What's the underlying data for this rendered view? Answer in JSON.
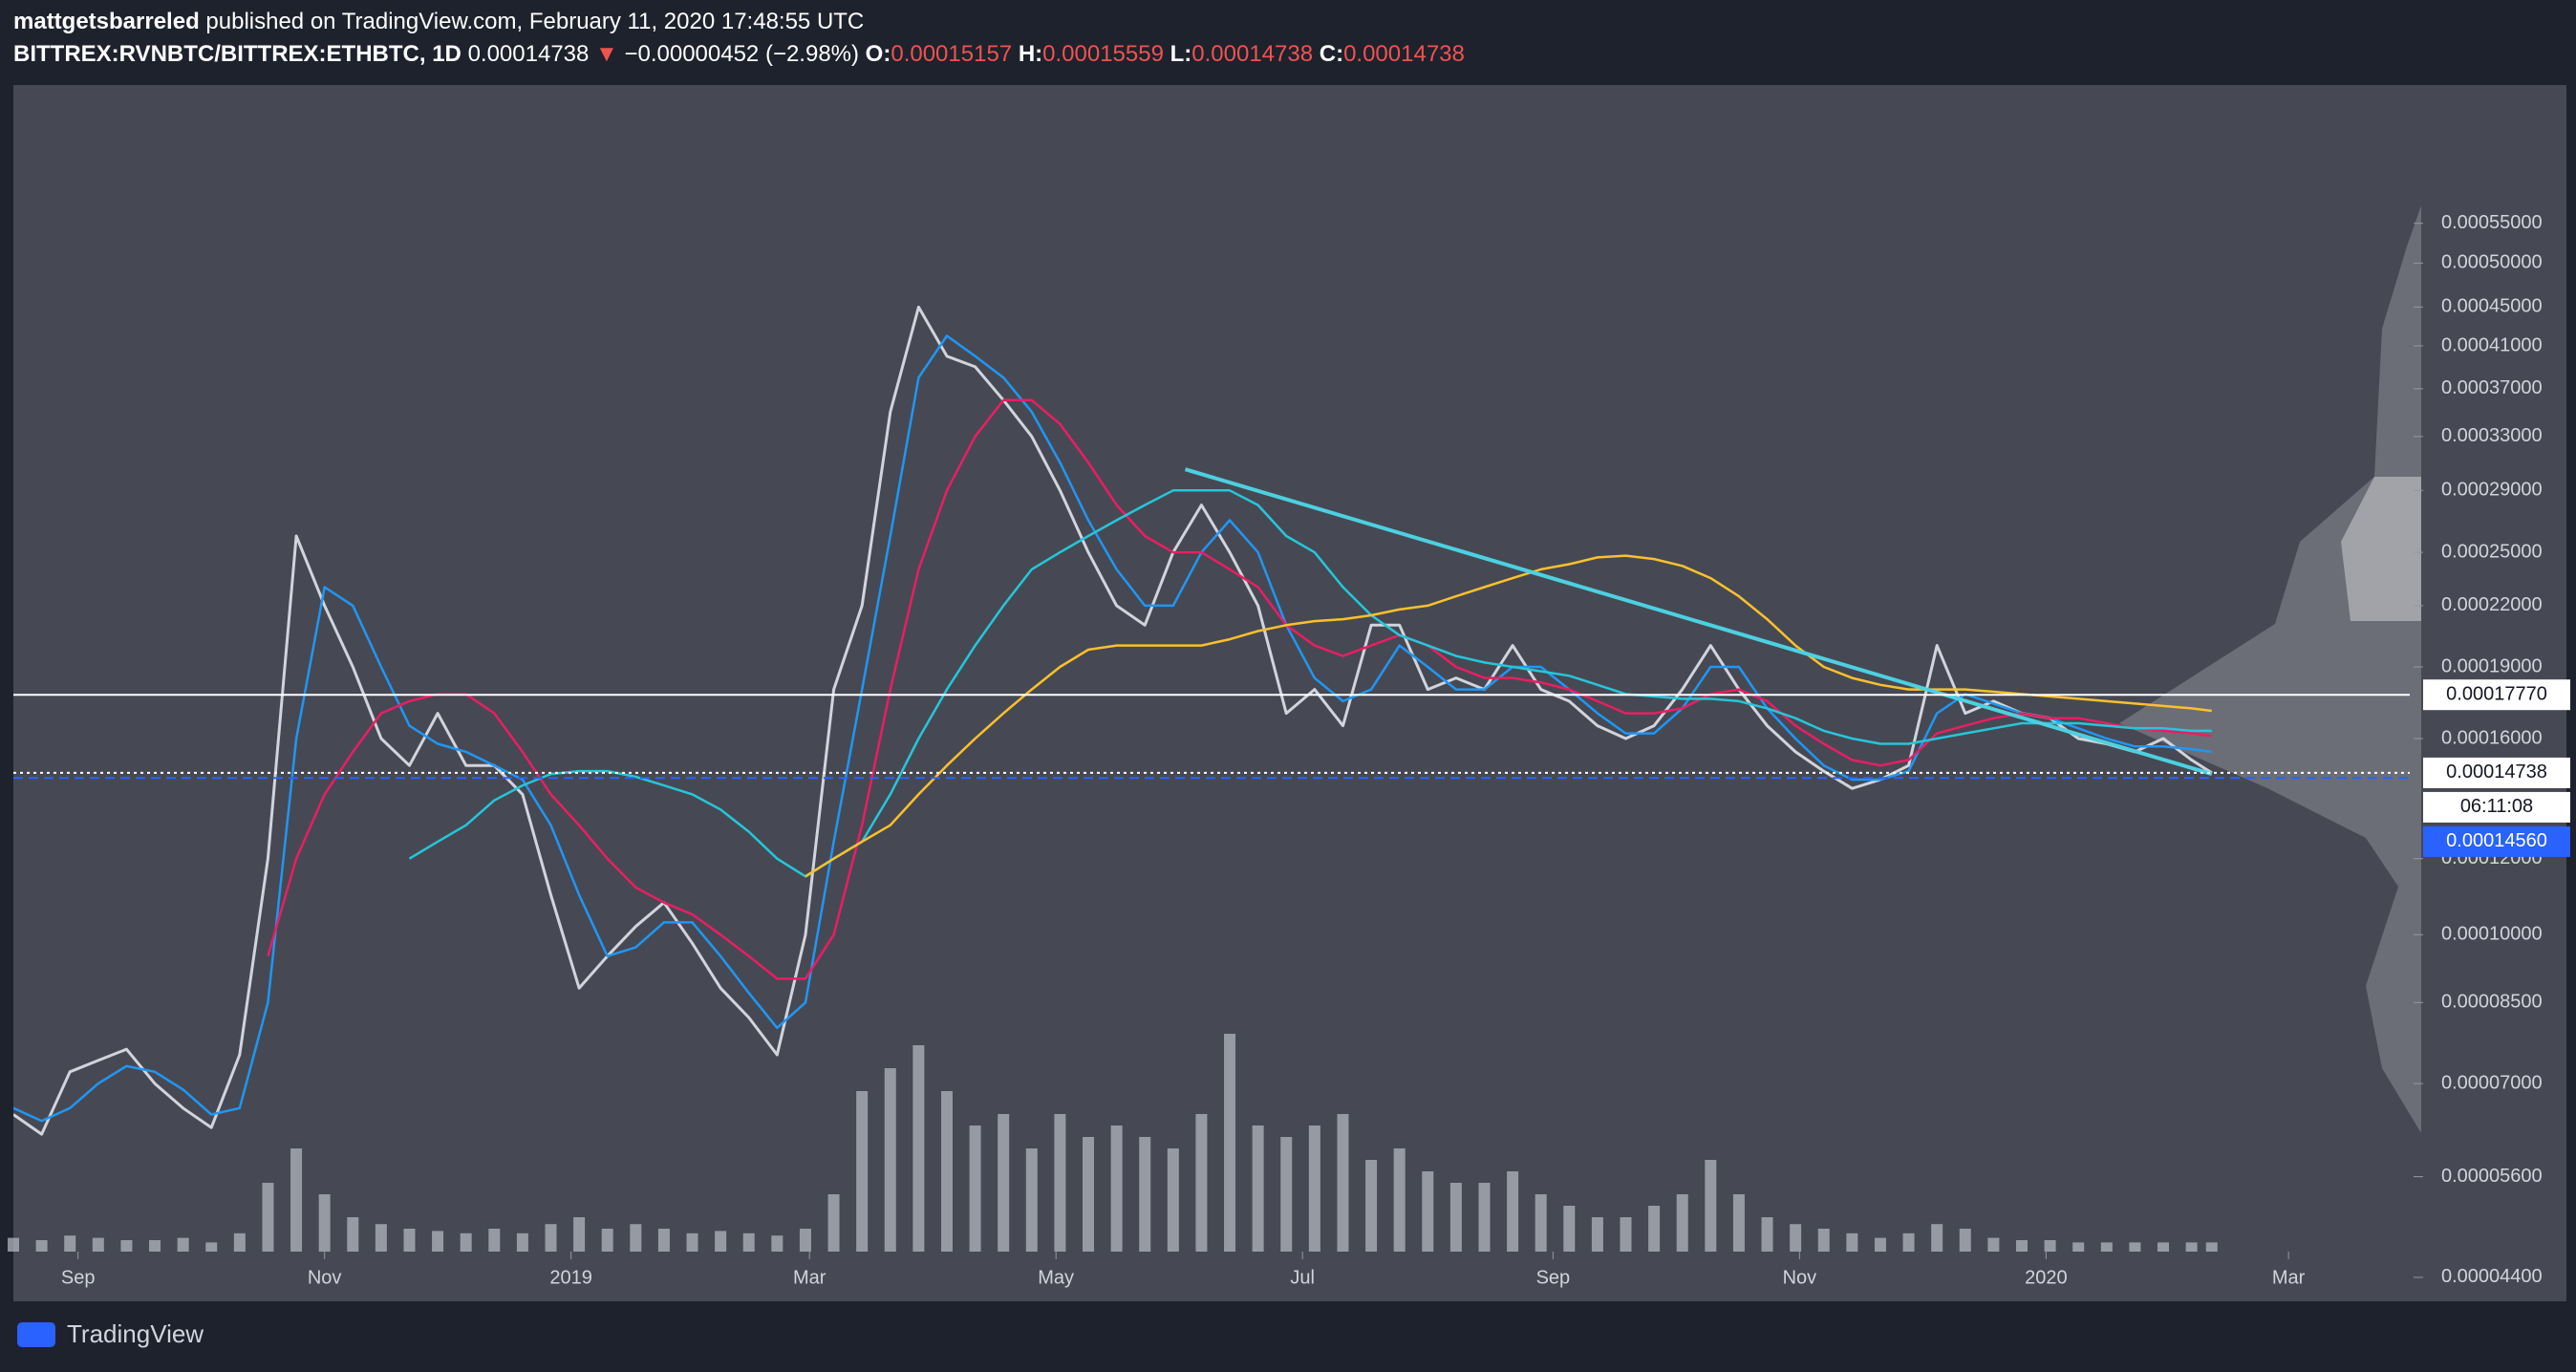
{
  "header": {
    "author": "mattgetsbarreled",
    "published": " published on TradingView.com, February 11, 2020 17:48:55 UTC",
    "symbol": "BITTREX:RVNBTC/BITTREX:ETHBTC, 1D",
    "last": "0.00014738",
    "change": "−0.00000452 (−2.98%)",
    "open_label": "O:",
    "open": "0.00015157",
    "high_label": "H:",
    "high": "0.00015559",
    "low_label": "L:",
    "low": "0.00014738",
    "close_label": "C:",
    "close": "0.00014738"
  },
  "footer": {
    "brand": "TradingView"
  },
  "chart_data": {
    "type": "line",
    "x": [
      0,
      7,
      14,
      21,
      28,
      35,
      42,
      49,
      56,
      63,
      70,
      77,
      84,
      91,
      98,
      105,
      112,
      119,
      126,
      133,
      140,
      147,
      154,
      161,
      168,
      175,
      182,
      189,
      196,
      203,
      210,
      217,
      224,
      231,
      238,
      245,
      252,
      259,
      266,
      273,
      280,
      287,
      294,
      301,
      308,
      315,
      322,
      329,
      336,
      343,
      350,
      357,
      364,
      371,
      378,
      385,
      392,
      399,
      406,
      413,
      420,
      427,
      434,
      441,
      448,
      455,
      462,
      469,
      476,
      483,
      490,
      497,
      504,
      511,
      518,
      525,
      532,
      539,
      544
    ],
    "xlim": [
      0,
      593
    ],
    "xticks": [
      {
        "value": 16,
        "label": "Sep"
      },
      {
        "value": 77,
        "label": "Nov"
      },
      {
        "value": 138,
        "label": "2019"
      },
      {
        "value": 197,
        "label": "Mar"
      },
      {
        "value": 258,
        "label": "May"
      },
      {
        "value": 319,
        "label": "Jul"
      },
      {
        "value": 381,
        "label": "Sep"
      },
      {
        "value": 442,
        "label": "Nov"
      },
      {
        "value": 503,
        "label": "2020"
      },
      {
        "value": 563,
        "label": "Mar"
      }
    ],
    "ylim": [
      4.68e-05,
      0.000766
    ],
    "log": true,
    "grid": false,
    "yticks": [
      {
        "value": 0.00055,
        "label": "0.00055000"
      },
      {
        "value": 0.0005,
        "label": "0.00050000"
      },
      {
        "value": 0.00045,
        "label": "0.00045000"
      },
      {
        "value": 0.00041,
        "label": "0.00041000"
      },
      {
        "value": 0.00037,
        "label": "0.00037000"
      },
      {
        "value": 0.00033,
        "label": "0.00033000"
      },
      {
        "value": 0.00029,
        "label": "0.00029000"
      },
      {
        "value": 0.00025,
        "label": "0.00025000"
      },
      {
        "value": 0.00022,
        "label": "0.00022000"
      },
      {
        "value": 0.00019,
        "label": "0.00019000"
      },
      {
        "value": 0.00016,
        "label": "0.00016000"
      },
      {
        "value": 0.00012,
        "label": "0.00012000"
      },
      {
        "value": 0.0001,
        "label": "0.00010000"
      },
      {
        "value": 8.5e-05,
        "label": "0.00008500"
      },
      {
        "value": 7e-05,
        "label": "0.00007000"
      },
      {
        "value": 5.6e-05,
        "label": "0.00005600"
      },
      {
        "value": 4.4e-05,
        "label": "0.00004400"
      }
    ],
    "series": [
      {
        "color": "#d1d4dc",
        "values": [
          6.5e-05,
          6.2e-05,
          7.2e-05,
          7.4e-05,
          7.6e-05,
          7e-05,
          6.6e-05,
          6.3e-05,
          7.5e-05,
          0.00012,
          0.00026,
          0.00022,
          0.00019,
          0.00016,
          0.00015,
          0.00017,
          0.00015,
          0.00015,
          0.00014,
          0.00011,
          8.8e-05,
          9.5e-05,
          0.000102,
          0.000108,
          9.8e-05,
          8.8e-05,
          8.2e-05,
          7.5e-05,
          0.0001,
          0.00018,
          0.00022,
          0.00035,
          0.00045,
          0.0004,
          0.00039,
          0.00036,
          0.00033,
          0.00029,
          0.00025,
          0.00022,
          0.00021,
          0.00025,
          0.00028,
          0.00025,
          0.00022,
          0.00017,
          0.00018,
          0.000165,
          0.00021,
          0.00021,
          0.00018,
          0.000185,
          0.00018,
          0.0002,
          0.00018,
          0.000175,
          0.000165,
          0.00016,
          0.000165,
          0.00018,
          0.0002,
          0.00018,
          0.000165,
          0.000155,
          0.000148,
          0.000142,
          0.000145,
          0.00015,
          0.0002,
          0.00017,
          0.000175,
          0.00017,
          0.000168,
          0.00016,
          0.000158,
          0.000155,
          0.00016,
          0.000152,
          0.00014738
        ]
      },
      {
        "color": "#2196f3",
        "values": [
          6.6e-05,
          6.4e-05,
          6.6e-05,
          7e-05,
          7.3e-05,
          7.2e-05,
          6.9e-05,
          6.5e-05,
          6.6e-05,
          8.5e-05,
          0.00016,
          0.00023,
          0.00022,
          0.00019,
          0.000165,
          0.000158,
          0.000155,
          0.00015,
          0.000145,
          0.00013,
          0.00011,
          9.5e-05,
          9.7e-05,
          0.000103,
          0.000103,
          9.5e-05,
          8.7e-05,
          8e-05,
          8.5e-05,
          0.000125,
          0.00018,
          0.00026,
          0.00038,
          0.00042,
          0.0004,
          0.00038,
          0.00035,
          0.00031,
          0.00027,
          0.00024,
          0.00022,
          0.00022,
          0.00025,
          0.00027,
          0.00025,
          0.00021,
          0.000185,
          0.000175,
          0.00018,
          0.0002,
          0.00019,
          0.00018,
          0.00018,
          0.00019,
          0.00019,
          0.00018,
          0.00017,
          0.000162,
          0.000162,
          0.000172,
          0.00019,
          0.00019,
          0.000172,
          0.00016,
          0.00015,
          0.000145,
          0.000145,
          0.000148,
          0.00017,
          0.000178,
          0.000174,
          0.00017,
          0.000168,
          0.000164,
          0.00016,
          0.000157,
          0.000157,
          0.000156,
          0.000155
        ]
      },
      {
        "color": "#e91e63",
        "values": [
          null,
          null,
          null,
          null,
          null,
          null,
          null,
          null,
          null,
          9.5e-05,
          0.00012,
          0.00014,
          0.000155,
          0.00017,
          0.000175,
          0.000178,
          0.000178,
          0.00017,
          0.000155,
          0.00014,
          0.00013,
          0.00012,
          0.000112,
          0.000108,
          0.000105,
          0.0001,
          9.5e-05,
          9e-05,
          9e-05,
          0.0001,
          0.00013,
          0.00018,
          0.00024,
          0.00029,
          0.00033,
          0.00036,
          0.00036,
          0.00034,
          0.00031,
          0.00028,
          0.00026,
          0.00025,
          0.00025,
          0.00024,
          0.00023,
          0.00021,
          0.0002,
          0.000195,
          0.0002,
          0.000205,
          0.0002,
          0.00019,
          0.000185,
          0.000185,
          0.000183,
          0.00018,
          0.000175,
          0.00017,
          0.00017,
          0.000172,
          0.000178,
          0.00018,
          0.000175,
          0.000165,
          0.000158,
          0.000152,
          0.00015,
          0.000152,
          0.000162,
          0.000165,
          0.000168,
          0.00017,
          0.000168,
          0.000168,
          0.000166,
          0.000164,
          0.000163,
          0.000162,
          0.000161
        ]
      },
      {
        "color": "#26c6da",
        "values": [
          null,
          null,
          null,
          null,
          null,
          null,
          null,
          null,
          null,
          null,
          null,
          null,
          null,
          null,
          0.00012,
          0.000125,
          0.00013,
          0.000138,
          0.000143,
          0.000147,
          0.000148,
          0.000148,
          0.000146,
          0.000143,
          0.00014,
          0.000135,
          0.000128,
          0.00012,
          0.000115,
          0.00012,
          0.000125,
          0.00014,
          0.00016,
          0.00018,
          0.0002,
          0.00022,
          0.00024,
          0.00025,
          0.00026,
          0.00027,
          0.00028,
          0.00029,
          0.00029,
          0.00029,
          0.00028,
          0.00026,
          0.00025,
          0.00023,
          0.000215,
          0.000205,
          0.0002,
          0.000195,
          0.000192,
          0.00019,
          0.000188,
          0.000186,
          0.000182,
          0.000178,
          0.000177,
          0.000176,
          0.000176,
          0.000175,
          0.000172,
          0.000168,
          0.000163,
          0.00016,
          0.000158,
          0.000158,
          0.00016,
          0.000162,
          0.000164,
          0.000166,
          0.000166,
          0.000166,
          0.000165,
          0.000164,
          0.000164,
          0.000163,
          0.000163
        ]
      },
      {
        "color": "#fbc02d",
        "values": [
          null,
          null,
          null,
          null,
          null,
          null,
          null,
          null,
          null,
          null,
          null,
          null,
          null,
          null,
          null,
          null,
          null,
          null,
          null,
          null,
          null,
          null,
          null,
          null,
          null,
          null,
          null,
          null,
          0.000115,
          0.00012,
          0.000125,
          0.00013,
          0.00014,
          0.00015,
          0.00016,
          0.00017,
          0.00018,
          0.00019,
          0.000198,
          0.0002,
          0.0002,
          0.0002,
          0.0002,
          0.000203,
          0.000207,
          0.00021,
          0.000212,
          0.000213,
          0.000215,
          0.000218,
          0.00022,
          0.000225,
          0.00023,
          0.000235,
          0.00024,
          0.000243,
          0.000247,
          0.000248,
          0.000246,
          0.000242,
          0.000235,
          0.000225,
          0.000213,
          0.0002,
          0.00019,
          0.000185,
          0.000182,
          0.00018,
          0.00018,
          0.00018,
          0.000179,
          0.000178,
          0.000177,
          0.000176,
          0.000175,
          0.000174,
          0.000173,
          0.000172,
          0.000171
        ]
      }
    ],
    "volume": {
      "color": "#b2b5be",
      "ylim": [
        0,
        100
      ],
      "values": [
        6,
        5,
        7,
        6,
        5,
        5,
        6,
        4,
        8,
        30,
        45,
        25,
        15,
        12,
        10,
        9,
        8,
        10,
        8,
        12,
        15,
        10,
        12,
        10,
        8,
        9,
        8,
        7,
        10,
        25,
        70,
        80,
        90,
        70,
        55,
        60,
        45,
        60,
        50,
        55,
        50,
        45,
        60,
        95,
        55,
        50,
        55,
        60,
        40,
        45,
        35,
        30,
        30,
        35,
        25,
        20,
        15,
        15,
        20,
        25,
        40,
        25,
        15,
        12,
        10,
        8,
        6,
        8,
        12,
        10,
        6,
        5,
        5,
        4,
        4,
        4,
        4,
        4,
        4
      ]
    },
    "trendline": {
      "color": "#4dd0e1",
      "x": [
        290,
        544
      ],
      "values": [
        0.000305,
        0.000147
      ]
    },
    "levels": [
      {
        "value": 0.0001777,
        "label": "0.00017770",
        "color": "#ffffff",
        "style": "solid"
      },
      {
        "value": 0.00014738,
        "label": "0.00014738",
        "color": "#ffffff",
        "style": "dotted",
        "countdown": "06:11:08"
      },
      {
        "value": 0.0001456,
        "label": "0.00014560",
        "color": "#2962ff",
        "style": "dashed"
      }
    ]
  }
}
